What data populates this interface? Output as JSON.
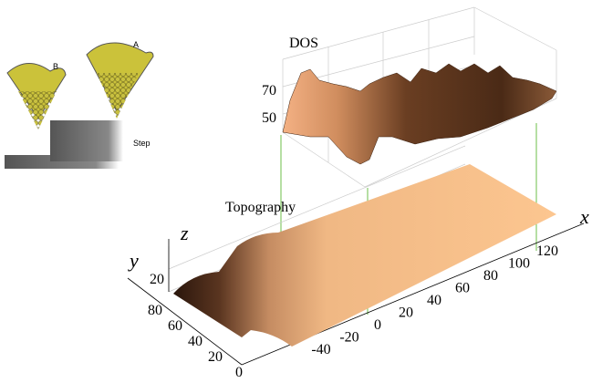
{
  "inset": {
    "tip_b": "B",
    "tip_a": "A",
    "step": "Step"
  },
  "dos": {
    "title": "DOS",
    "z_ticks": [
      70,
      50
    ]
  },
  "topography": {
    "title": "Topography",
    "axis_labels": {
      "z": "z",
      "y": "y",
      "x": "x"
    },
    "x_ticks": [
      -40,
      -20,
      0,
      20,
      40,
      60,
      80,
      100,
      120
    ],
    "y_ticks": [
      0,
      20,
      40,
      60,
      80
    ],
    "z_ticks": [
      20
    ]
  }
}
